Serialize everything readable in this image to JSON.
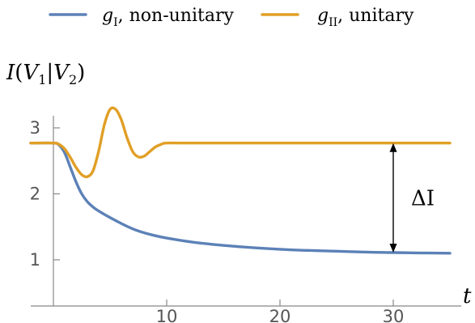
{
  "chart_data": {
    "type": "line",
    "title": "",
    "legend_placement": "top",
    "xlabel": "t",
    "ylabel": "I(V1|V2)",
    "xlim": [
      -2,
      36
    ],
    "ylim": [
      0.3,
      3.65
    ],
    "xticks": [
      10,
      20,
      30
    ],
    "yticks": [
      1,
      2,
      3
    ],
    "grid": false,
    "series": [
      {
        "name": "gI, non-unitary",
        "legend_main": "g",
        "legend_sub": "I",
        "legend_rest": ", non-unitary",
        "color": "#5c81b7",
        "x": [
          -2,
          0,
          0.5,
          1,
          1.5,
          2,
          2.5,
          3,
          3.5,
          4,
          5,
          6,
          7,
          8,
          9,
          10,
          12,
          14,
          16,
          18,
          20,
          22,
          25,
          28,
          30,
          32,
          35
        ],
        "y": [
          2.77,
          2.77,
          2.74,
          2.62,
          2.4,
          2.18,
          2.0,
          1.88,
          1.8,
          1.74,
          1.64,
          1.55,
          1.47,
          1.41,
          1.365,
          1.33,
          1.275,
          1.235,
          1.205,
          1.18,
          1.16,
          1.145,
          1.13,
          1.115,
          1.11,
          1.105,
          1.1
        ]
      },
      {
        "name": "gII, unitary",
        "legend_main": "g",
        "legend_sub": "II",
        "legend_rest": ", unitary",
        "color": "#e19f26",
        "x": [
          -2,
          0,
          0.5,
          1,
          1.5,
          2,
          2.5,
          3,
          3.5,
          4,
          4.5,
          5,
          5.5,
          6,
          6.5,
          7,
          7.5,
          8,
          8.5,
          9,
          9.5,
          10,
          12,
          15,
          20,
          25,
          30,
          35
        ],
        "y": [
          2.77,
          2.77,
          2.75,
          2.68,
          2.55,
          2.4,
          2.29,
          2.26,
          2.35,
          2.65,
          3.05,
          3.28,
          3.28,
          3.12,
          2.85,
          2.64,
          2.56,
          2.57,
          2.64,
          2.71,
          2.75,
          2.77,
          2.77,
          2.77,
          2.77,
          2.77,
          2.77,
          2.77
        ]
      }
    ],
    "annotation": {
      "label": "ΔI",
      "x": 30,
      "y_from": 1.11,
      "y_to": 2.77
    }
  }
}
